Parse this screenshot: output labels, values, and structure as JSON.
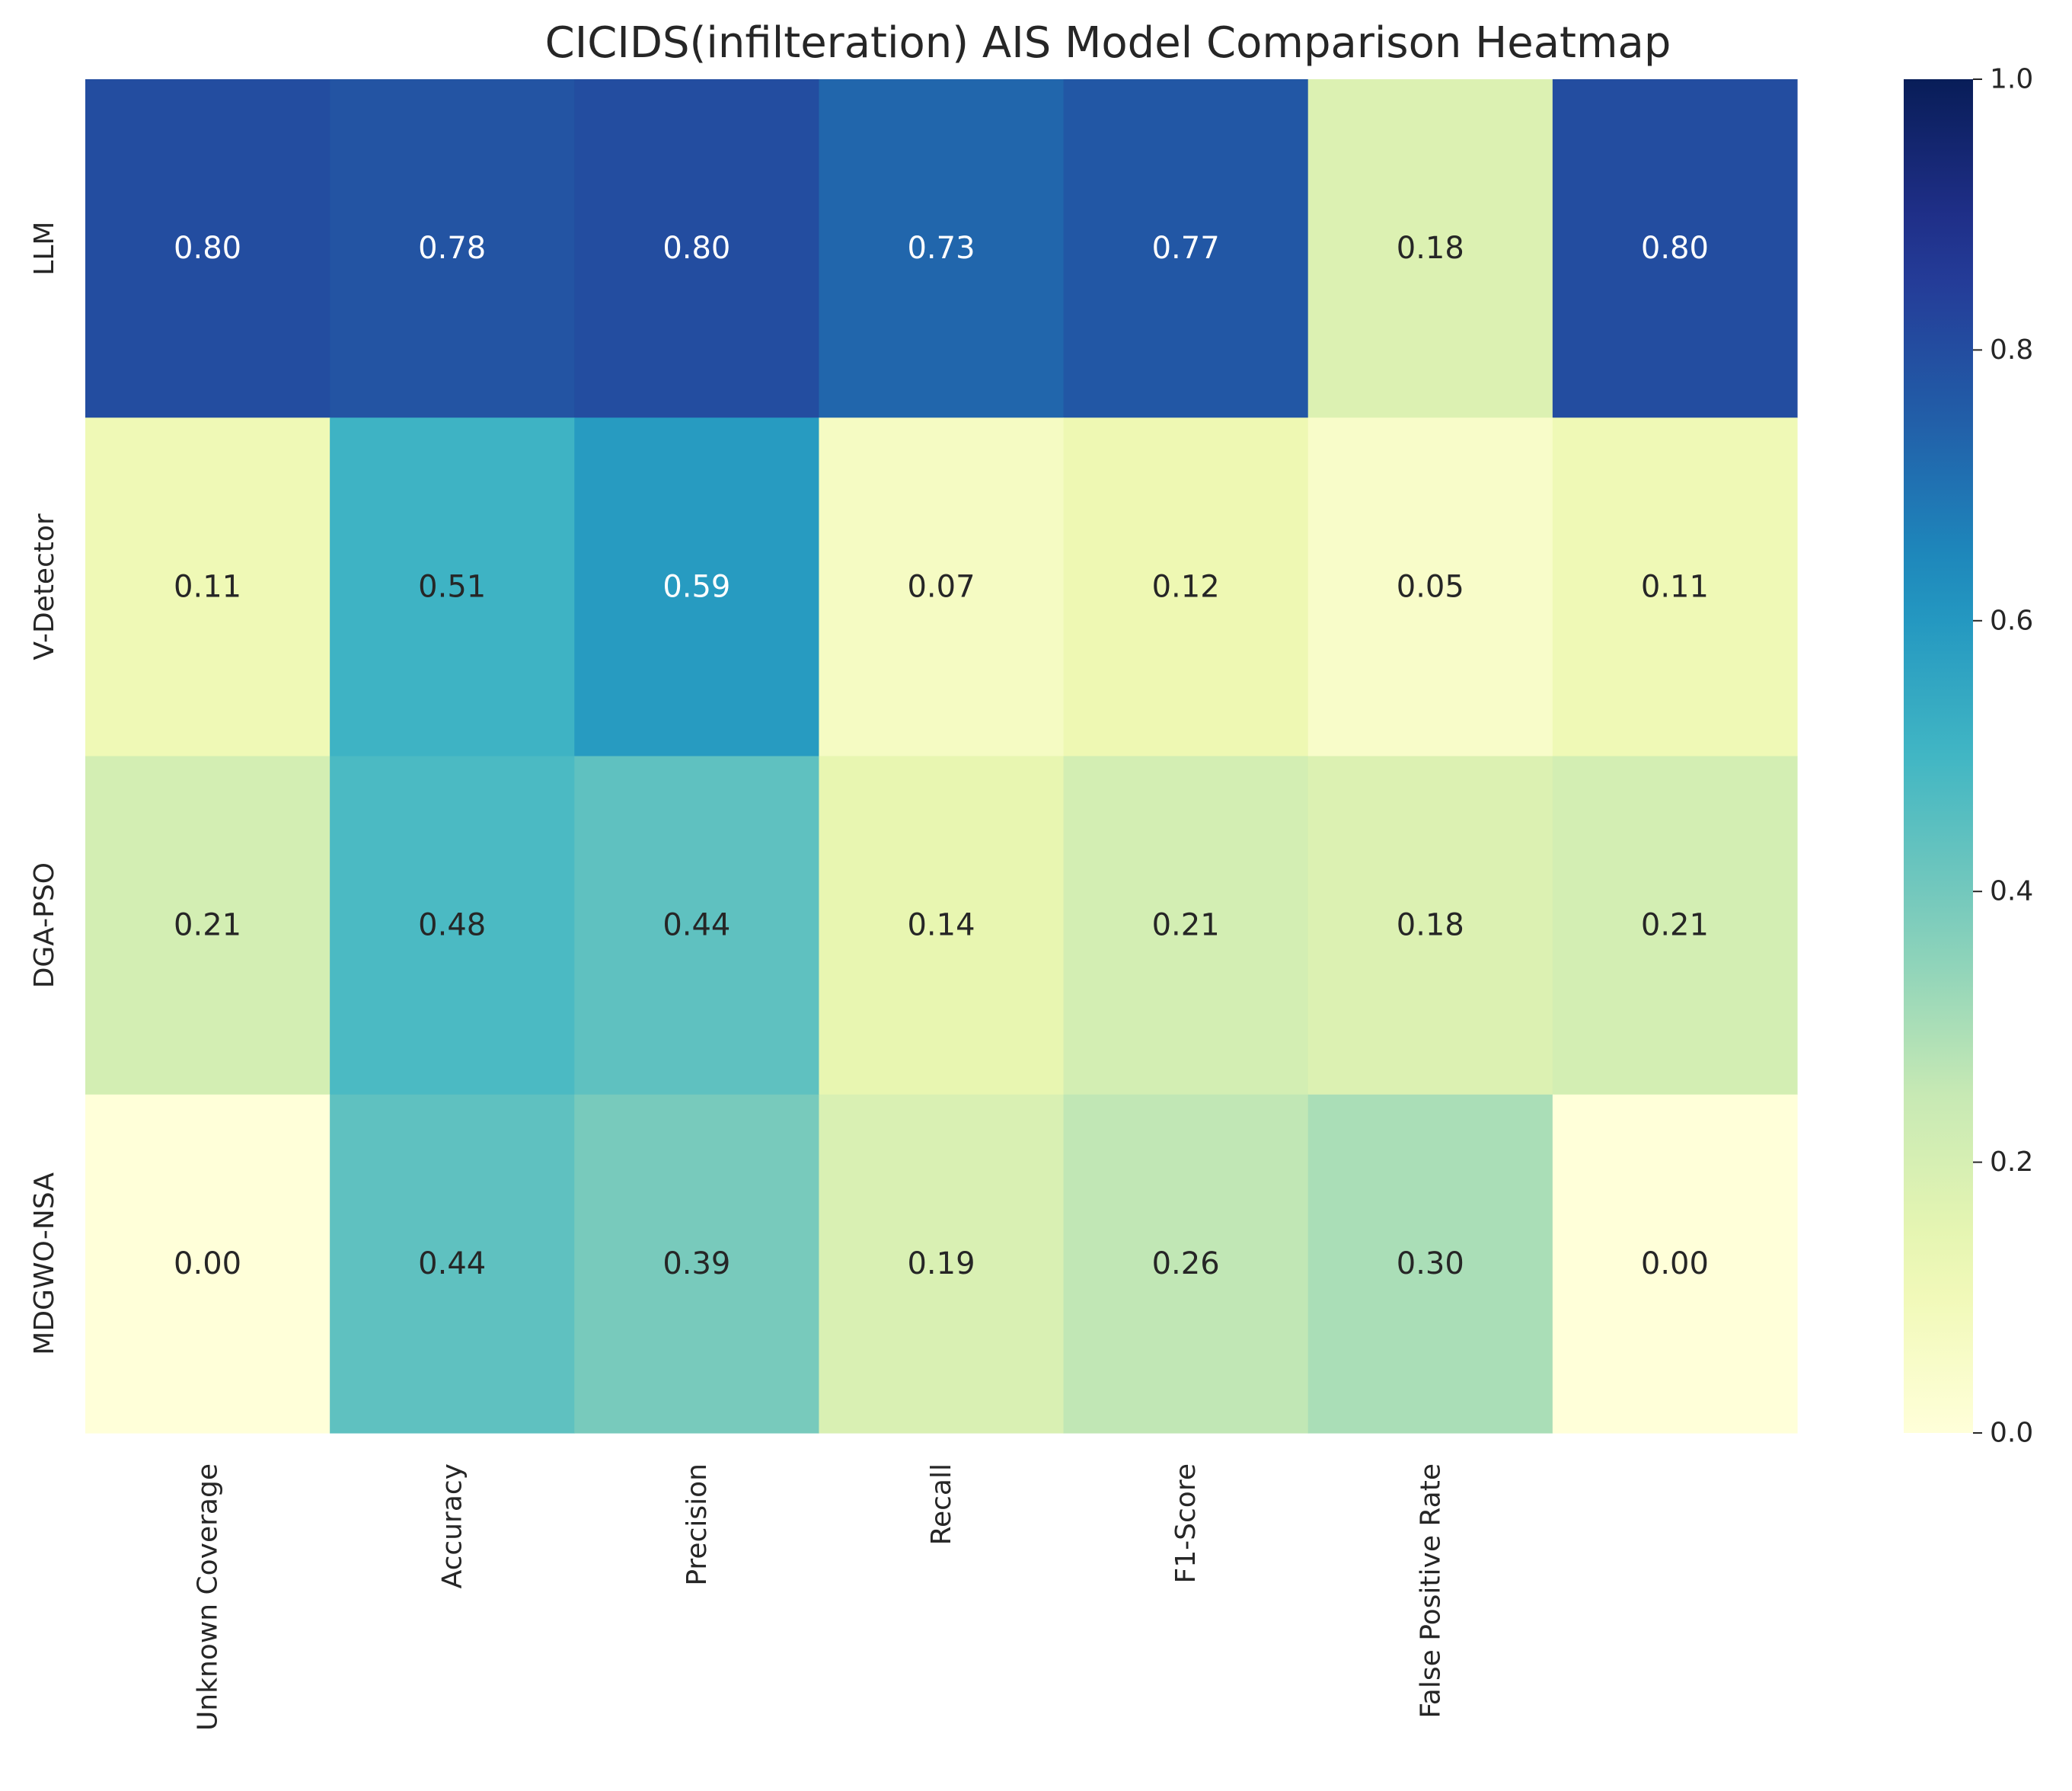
{
  "chart_data": {
    "type": "heatmap",
    "title": "CICIDS(infilteration) AIS Model Comparison Heatmap",
    "rows": [
      "LLM",
      "V-Detector",
      "DGA-PSO",
      "MDGWO-NSA"
    ],
    "columns": [
      "Unknown Coverage",
      "Accuracy",
      "Precision",
      "Recall",
      "F1-Score",
      "False Positive Rate",
      ""
    ],
    "values": [
      [
        0.8,
        0.78,
        0.8,
        0.73,
        0.77,
        0.18,
        0.8
      ],
      [
        0.11,
        0.51,
        0.59,
        0.07,
        0.12,
        0.05,
        0.11
      ],
      [
        0.21,
        0.48,
        0.44,
        0.14,
        0.21,
        0.18,
        0.21
      ],
      [
        0.0,
        0.44,
        0.39,
        0.19,
        0.26,
        0.3,
        0.0
      ]
    ],
    "cell_labels": [
      [
        "0.80",
        "0.78",
        "0.80",
        "0.73",
        "0.77",
        "0.18",
        "0.80"
      ],
      [
        "0.11",
        "0.51",
        "0.59",
        "0.07",
        "0.12",
        "0.05",
        "0.11"
      ],
      [
        "0.21",
        "0.48",
        "0.44",
        "0.14",
        "0.21",
        "0.18",
        "0.21"
      ],
      [
        "0.00",
        "0.44",
        "0.39",
        "0.19",
        "0.26",
        "0.30",
        "0.00"
      ]
    ],
    "vmin": 0.0,
    "vmax": 1.0,
    "colormap": "YlGnBu",
    "colorbar_ticks": [
      "0.0",
      "0.2",
      "0.4",
      "0.6",
      "0.8",
      "1.0"
    ],
    "colorbar_tick_values": [
      0.0,
      0.2,
      0.4,
      0.6,
      0.8,
      1.0
    ],
    "grid": false,
    "colorbar_placement": "right"
  }
}
